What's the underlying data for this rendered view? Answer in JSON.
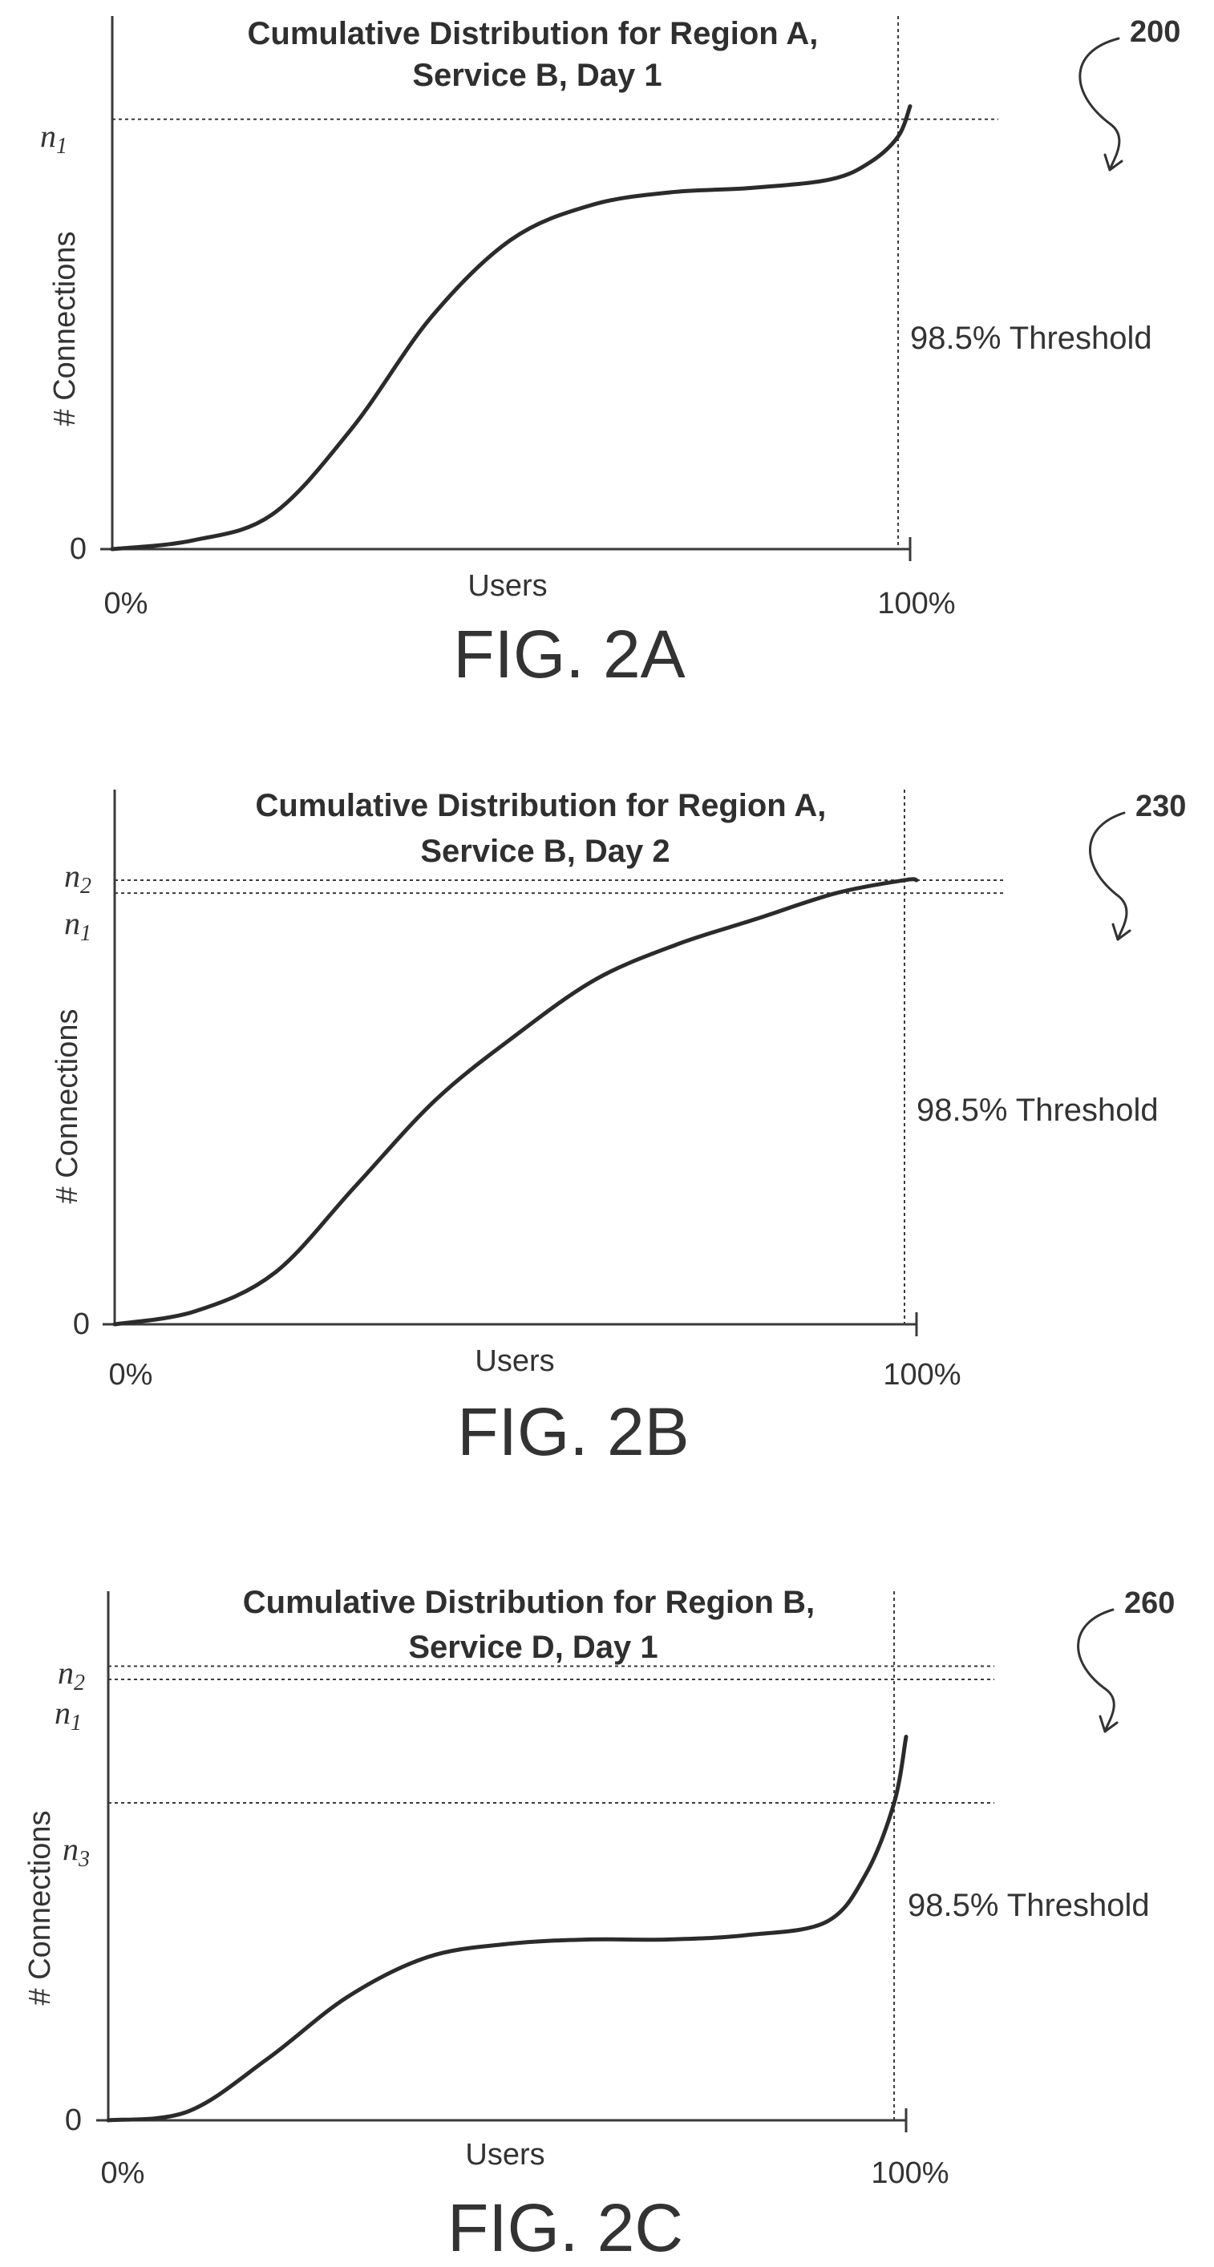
{
  "chart_data": [
    {
      "type": "line",
      "title": "Cumulative Distribution for Region A, Service B, Day 1",
      "title_lines": [
        "Cumulative Distribution for Region A,",
        "Service B, Day 1"
      ],
      "xlabel": "Users",
      "ylabel": "# Connections",
      "x_tick_labels": [
        "0%",
        "100%"
      ],
      "y_tick_labels": [
        "0"
      ],
      "xlim": [
        0,
        100
      ],
      "ylim": [
        0,
        1.24
      ],
      "levels": [
        {
          "name": "1",
          "value": 1.0
        }
      ],
      "threshold": {
        "x": 98.5,
        "label": "98.5% Threshold"
      },
      "series": [
        {
          "x": [
            0,
            10,
            20,
            30,
            40,
            50,
            60,
            70,
            80,
            90,
            95,
            98.5,
            100
          ],
          "values": [
            0,
            0.02,
            0.08,
            0.28,
            0.54,
            0.72,
            0.8,
            0.83,
            0.84,
            0.86,
            0.9,
            0.96,
            1.03
          ]
        }
      ],
      "caption": "FIG. 2A",
      "reference_number": "200"
    },
    {
      "type": "line",
      "title": "Cumulative Distribution for Region A, Service B, Day 2",
      "title_lines": [
        "Cumulative Distribution for Region A,",
        "Service B, Day 2"
      ],
      "xlabel": "Users",
      "ylabel": "# Connections",
      "x_tick_labels": [
        "0%",
        "100%"
      ],
      "y_tick_labels": [
        "0"
      ],
      "xlim": [
        0,
        100
      ],
      "ylim": [
        0,
        1.24
      ],
      "levels": [
        {
          "name": "2",
          "value": 1.03
        },
        {
          "name": "1",
          "value": 1.0
        }
      ],
      "threshold": {
        "x": 98.5,
        "label": "98.5% Threshold"
      },
      "series": [
        {
          "x": [
            0,
            10,
            20,
            30,
            40,
            50,
            60,
            70,
            80,
            90,
            98.5,
            100
          ],
          "values": [
            0,
            0.03,
            0.12,
            0.32,
            0.52,
            0.67,
            0.8,
            0.88,
            0.94,
            1.0,
            1.03,
            1.03
          ]
        }
      ],
      "caption": "FIG. 2B",
      "reference_number": "230"
    },
    {
      "type": "line",
      "title": "Cumulative Distribution for Region B, Service D, Day 1",
      "title_lines": [
        "Cumulative Distribution for Region B,",
        "Service D, Day 1"
      ],
      "xlabel": "Users",
      "ylabel": "# Connections",
      "x_tick_labels": [
        "0%",
        "100%"
      ],
      "y_tick_labels": [
        "0"
      ],
      "xlim": [
        0,
        100
      ],
      "ylim": [
        0,
        1.2
      ],
      "levels": [
        {
          "name": "2",
          "value": 1.03
        },
        {
          "name": "1",
          "value": 1.0
        },
        {
          "name": "3",
          "value": 0.72
        }
      ],
      "threshold": {
        "x": 98.5,
        "label": "98.5% Threshold"
      },
      "series": [
        {
          "x": [
            0,
            10,
            20,
            30,
            40,
            50,
            60,
            70,
            80,
            90,
            95,
            98.5,
            100
          ],
          "values": [
            0,
            0.02,
            0.14,
            0.28,
            0.37,
            0.4,
            0.41,
            0.41,
            0.42,
            0.45,
            0.56,
            0.72,
            0.87
          ]
        }
      ],
      "caption": "FIG. 2C",
      "reference_number": "260"
    }
  ]
}
